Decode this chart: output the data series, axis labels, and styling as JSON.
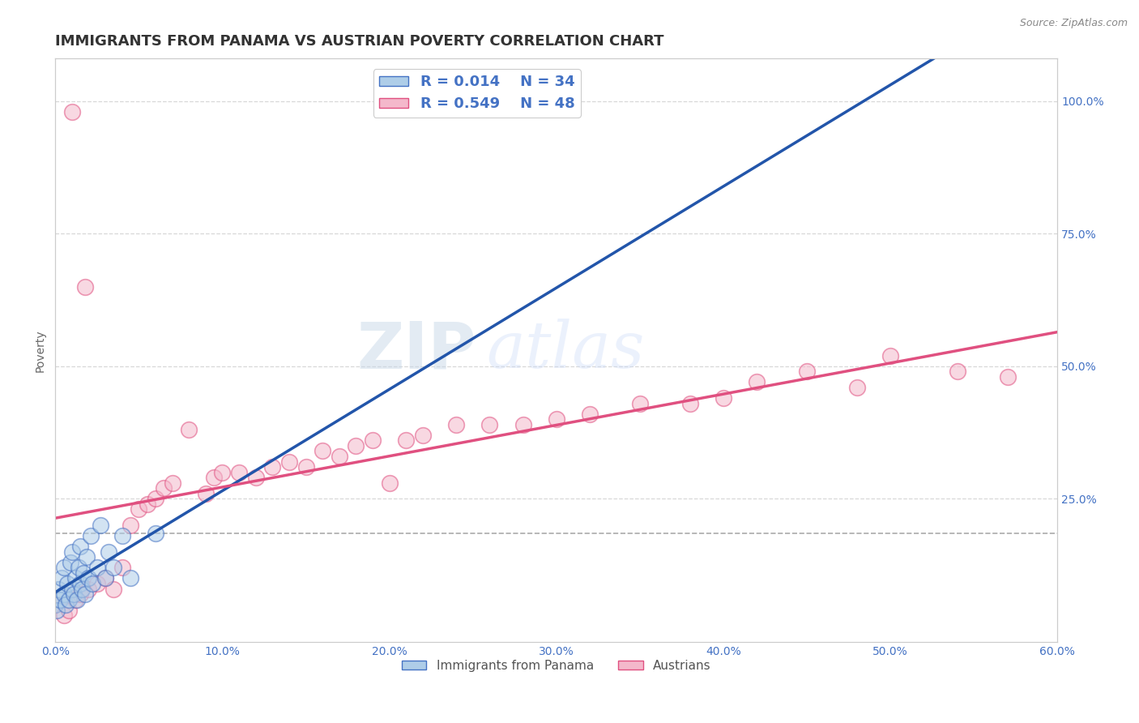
{
  "title": "IMMIGRANTS FROM PANAMA VS AUSTRIAN POVERTY CORRELATION CHART",
  "source_text": "Source: ZipAtlas.com",
  "ylabel": "Poverty",
  "xlim": [
    0.0,
    0.6
  ],
  "ylim": [
    -0.02,
    1.08
  ],
  "xtick_labels": [
    "0.0%",
    "10.0%",
    "20.0%",
    "30.0%",
    "40.0%",
    "50.0%",
    "60.0%"
  ],
  "xtick_positions": [
    0.0,
    0.1,
    0.2,
    0.3,
    0.4,
    0.5,
    0.6
  ],
  "ytick_right_labels": [
    "100.0%",
    "75.0%",
    "50.0%",
    "25.0%"
  ],
  "ytick_right_positions": [
    1.0,
    0.75,
    0.5,
    0.25
  ],
  "background_color": "#ffffff",
  "watermark_zip": "ZIP",
  "watermark_atlas": "atlas",
  "legend_r1": "R = 0.014",
  "legend_n1": "N = 34",
  "legend_r2": "R = 0.549",
  "legend_n2": "N = 48",
  "legend_label1": "Immigrants from Panama",
  "legend_label2": "Austrians",
  "blue_fill": "#aecde8",
  "blue_edge": "#4472c4",
  "pink_fill": "#f4b8cb",
  "pink_edge": "#e05080",
  "blue_line_color": "#2255aa",
  "pink_line_color": "#e05080",
  "dashed_line_color": "#aaaaaa",
  "grid_color": "#d8d8d8",
  "blue_scatter_x": [
    0.0,
    0.001,
    0.002,
    0.003,
    0.004,
    0.005,
    0.005,
    0.006,
    0.007,
    0.008,
    0.009,
    0.01,
    0.01,
    0.011,
    0.012,
    0.013,
    0.014,
    0.015,
    0.015,
    0.016,
    0.017,
    0.018,
    0.019,
    0.02,
    0.021,
    0.022,
    0.025,
    0.027,
    0.03,
    0.032,
    0.035,
    0.04,
    0.045,
    0.06
  ],
  "blue_scatter_y": [
    0.05,
    0.04,
    0.08,
    0.06,
    0.1,
    0.07,
    0.12,
    0.05,
    0.09,
    0.06,
    0.13,
    0.08,
    0.15,
    0.07,
    0.1,
    0.06,
    0.12,
    0.09,
    0.16,
    0.08,
    0.11,
    0.07,
    0.14,
    0.1,
    0.18,
    0.09,
    0.12,
    0.2,
    0.1,
    0.15,
    0.12,
    0.18,
    0.1,
    0.185
  ],
  "pink_scatter_x": [
    0.0,
    0.005,
    0.008,
    0.01,
    0.012,
    0.015,
    0.018,
    0.02,
    0.025,
    0.03,
    0.035,
    0.04,
    0.045,
    0.05,
    0.055,
    0.06,
    0.065,
    0.07,
    0.08,
    0.09,
    0.095,
    0.1,
    0.11,
    0.12,
    0.13,
    0.14,
    0.15,
    0.16,
    0.17,
    0.18,
    0.19,
    0.2,
    0.21,
    0.22,
    0.24,
    0.26,
    0.28,
    0.3,
    0.32,
    0.35,
    0.38,
    0.4,
    0.42,
    0.45,
    0.48,
    0.5,
    0.54,
    0.57
  ],
  "pink_scatter_y": [
    0.05,
    0.03,
    0.04,
    0.98,
    0.06,
    0.07,
    0.65,
    0.08,
    0.09,
    0.1,
    0.08,
    0.12,
    0.2,
    0.23,
    0.24,
    0.25,
    0.27,
    0.28,
    0.38,
    0.26,
    0.29,
    0.3,
    0.3,
    0.29,
    0.31,
    0.32,
    0.31,
    0.34,
    0.33,
    0.35,
    0.36,
    0.28,
    0.36,
    0.37,
    0.39,
    0.39,
    0.39,
    0.4,
    0.41,
    0.43,
    0.43,
    0.44,
    0.47,
    0.49,
    0.46,
    0.52,
    0.49,
    0.48
  ],
  "dashed_line_y": 0.185,
  "title_fontsize": 13,
  "axis_label_fontsize": 10,
  "tick_fontsize": 10,
  "source_fontsize": 9,
  "scatter_size": 200,
  "scatter_alpha": 0.55,
  "scatter_linewidth": 1.2
}
